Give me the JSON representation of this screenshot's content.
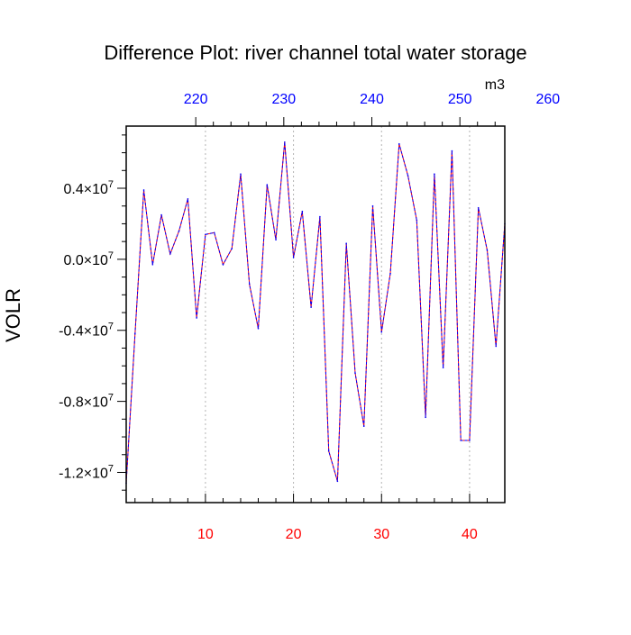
{
  "chart_data": {
    "type": "line",
    "title": "Difference Plot: river channel total water storage",
    "ylabel": "VOLR",
    "units_label": "m3",
    "grid": "x-only-dotted",
    "colors": {
      "series_line_a": "#ff0000",
      "series_line_b": "#0000ff",
      "bottom_ticks": "#ff0000",
      "top_ticks": "#0000ff",
      "text": "#000000",
      "grid": "#b4b4b4"
    },
    "xlim": [
      1,
      44
    ],
    "ylim": [
      -13.7,
      7.5
    ],
    "y_scale_note": "values in units of 10^6",
    "bottom_ticks": [
      {
        "value": 10,
        "label": "10"
      },
      {
        "value": 20,
        "label": "20"
      },
      {
        "value": 30,
        "label": "30"
      },
      {
        "value": 40,
        "label": "40"
      }
    ],
    "top_ticks": [
      {
        "value": 8.9,
        "label": "220"
      },
      {
        "value": 18.9,
        "label": "230"
      },
      {
        "value": 28.9,
        "label": "240"
      },
      {
        "value": 38.9,
        "label": "250"
      },
      {
        "value": 48.9,
        "label": "260"
      }
    ],
    "top_axis": {
      "offset": 211.1
    },
    "y_ticks": [
      {
        "value": 4,
        "mantissa": "0.4",
        "exp": "7"
      },
      {
        "value": 0,
        "mantissa": "0.0",
        "exp": "7"
      },
      {
        "value": -4,
        "mantissa": "-0.4",
        "exp": "7"
      },
      {
        "value": -8,
        "mantissa": "-0.8",
        "exp": "7"
      },
      {
        "value": -12,
        "mantissa": "-1.2",
        "exp": "7"
      }
    ],
    "y_tick_times": "×10",
    "series": [
      {
        "x": [
          1,
          2,
          3,
          4,
          5,
          6,
          7,
          8,
          9,
          10,
          11,
          12,
          13,
          14,
          15,
          16,
          17,
          18,
          19,
          20,
          21,
          22,
          23,
          24,
          25,
          26,
          27,
          28,
          29,
          30,
          31,
          32,
          33,
          34,
          35,
          36,
          37,
          38,
          39,
          40,
          41,
          42,
          43,
          44
        ],
        "values": [
          -12.6,
          -4.2,
          3.9,
          -0.3,
          2.5,
          0.3,
          1.6,
          3.4,
          -3.3,
          1.4,
          1.5,
          -0.3,
          0.6,
          4.8,
          -1.4,
          -3.9,
          4.2,
          1.1,
          6.6,
          0.1,
          2.7,
          -2.7,
          2.4,
          -10.8,
          -12.5,
          0.9,
          -6.4,
          -9.4,
          3.0,
          -4.1,
          -0.8,
          6.5,
          4.7,
          2.2,
          -8.9,
          4.8,
          -6.1,
          6.1,
          -10.2,
          -10.2,
          2.9,
          0.5,
          -4.9,
          2.0
        ]
      }
    ]
  }
}
